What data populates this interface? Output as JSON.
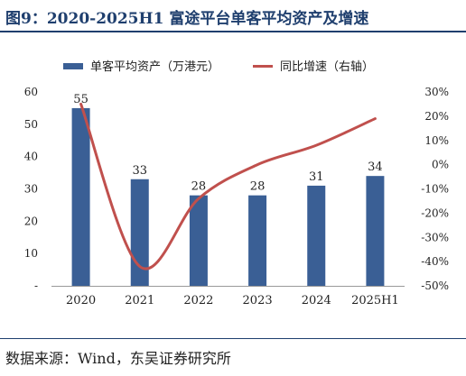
{
  "title": "图9：2020-2025H1 富途平台单客平均资产及增速",
  "source": "数据来源：Wind，东吴证券研究所",
  "chart_data": {
    "type": "bar+line",
    "categories": [
      "2020",
      "2021",
      "2022",
      "2023",
      "2024",
      "2025H1"
    ],
    "series": [
      {
        "name": "单客平均资产（万港元）",
        "type": "bar",
        "axis": "left",
        "values": [
          55,
          33,
          28,
          28,
          31,
          34
        ],
        "color": "#3a5f95"
      },
      {
        "name": "同比增速（右轴）",
        "type": "line",
        "axis": "right",
        "values": [
          25,
          -42,
          -14,
          0,
          8,
          19
        ],
        "color": "#c0504d"
      }
    ],
    "y_left": {
      "min": 0,
      "max": 60,
      "ticks": [
        "-",
        "10",
        "20",
        "30",
        "40",
        "50",
        "60"
      ]
    },
    "y_right": {
      "min": -50,
      "max": 30,
      "ticks": [
        "-50%",
        "-40%",
        "-30%",
        "-20%",
        "-10%",
        "0%",
        "10%",
        "20%",
        "30%"
      ]
    },
    "legend_position": "top",
    "grid": false
  }
}
